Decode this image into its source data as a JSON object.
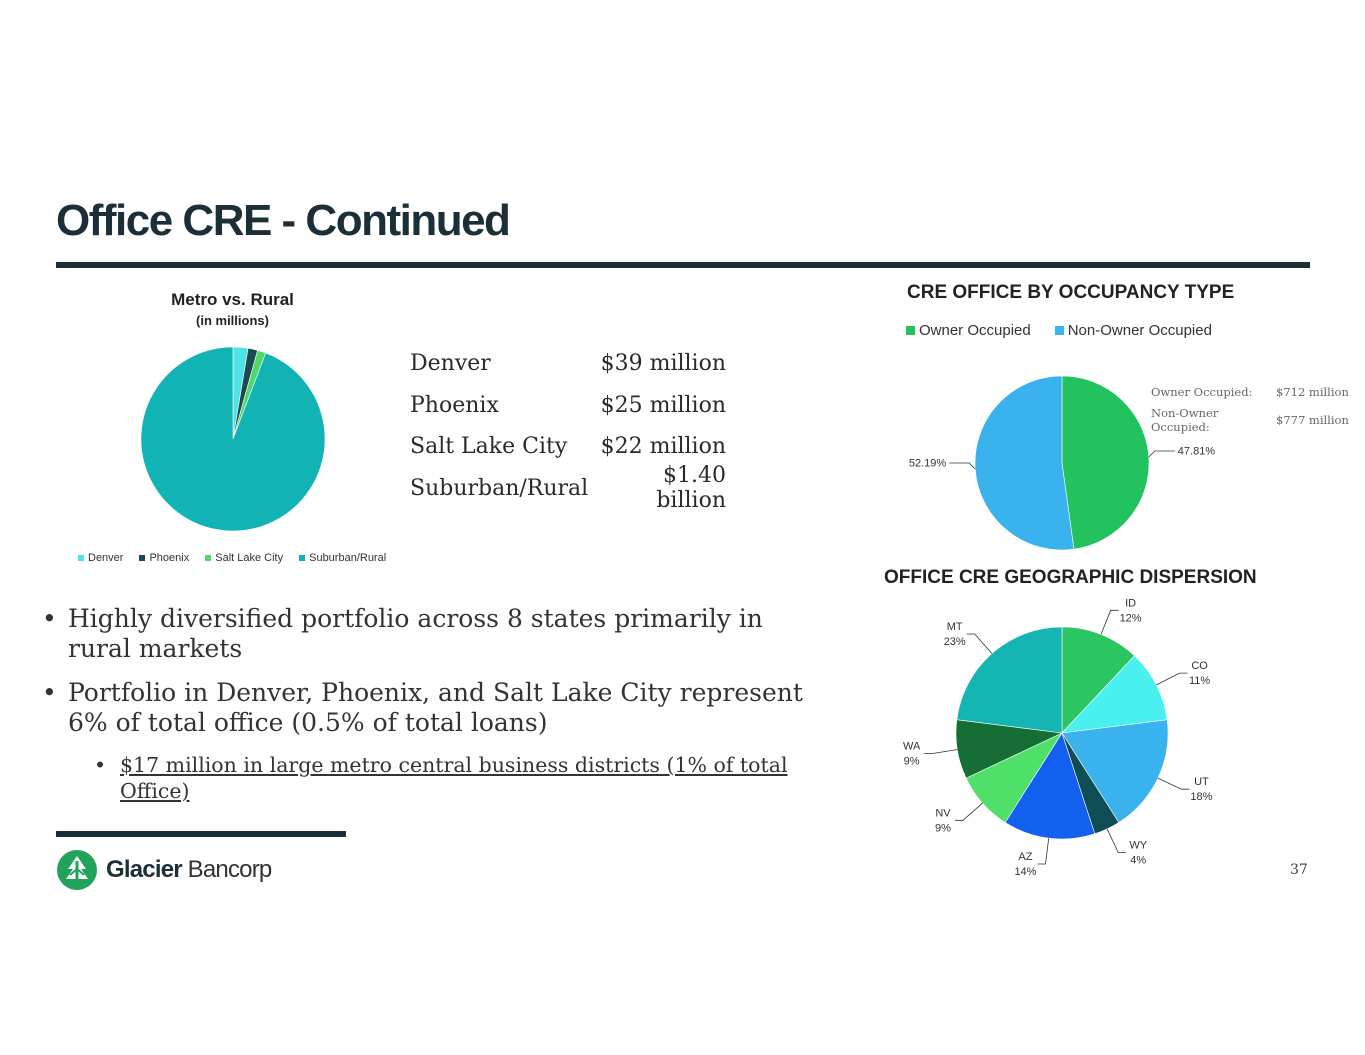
{
  "slide": {
    "title": "Office CRE - Continued",
    "page_number": "37",
    "logo": {
      "bold": "Glacier",
      "light": "Bancorp",
      "brand_color": "#22a35a"
    }
  },
  "city_table": [
    {
      "name": "Denver",
      "value": "$39 million"
    },
    {
      "name": "Phoenix",
      "value": "$25 million"
    },
    {
      "name": "Salt Lake City",
      "value": "$22 million"
    },
    {
      "name": "Suburban/Rural",
      "value": "$1.40 billion"
    }
  ],
  "bullets": {
    "b1": "Highly diversified portfolio across 8 states primarily in rural markets",
    "b2": "Portfolio in Denver, Phoenix, and Salt Lake City represent 6% of total office (0.5% of total loans)",
    "b2_sub": "$17 million in large metro central business districts (1% of total Office)"
  },
  "occupancy_notes": [
    {
      "label": "Owner Occupied:",
      "value": "$712 million"
    },
    {
      "label": "Non-Owner Occupied:",
      "value": "$777 million"
    }
  ],
  "chart_data": [
    {
      "type": "pie",
      "title": "Metro vs. Rural",
      "subtitle": "(in millions)",
      "categories": [
        "Denver",
        "Phoenix",
        "Salt Lake City",
        "Suburban/Rural"
      ],
      "values": [
        39,
        25,
        22,
        1400
      ],
      "colors": [
        "#4fe3e6",
        "#1c4a54",
        "#4fd96a",
        "#12b3b5"
      ],
      "legend": "bottom"
    },
    {
      "type": "pie",
      "title": "CRE OFFICE BY OCCUPANCY TYPE",
      "categories": [
        "Owner Occupied",
        "Non-Owner Occupied"
      ],
      "values": [
        47.81,
        52.19
      ],
      "labels": [
        "47.81%",
        "52.19%"
      ],
      "colors": [
        "#22c35e",
        "#3ab2ee"
      ],
      "legend": "top"
    },
    {
      "type": "pie",
      "title": "OFFICE CRE GEOGRAPHIC DISPERSION",
      "categories": [
        "ID",
        "CO",
        "UT",
        "WY",
        "AZ",
        "NV",
        "WA",
        "MT"
      ],
      "values": [
        12,
        11,
        18,
        4,
        14,
        9,
        9,
        23
      ],
      "labels": [
        "12%",
        "11%",
        "18%",
        "4%",
        "14%",
        "9%",
        "9%",
        "23%"
      ],
      "colors": [
        "#2bc662",
        "#49f0f0",
        "#3ab2ee",
        "#0f4d55",
        "#1460ee",
        "#4fe06a",
        "#156f35",
        "#14b5b2"
      ],
      "legend": "none"
    }
  ]
}
